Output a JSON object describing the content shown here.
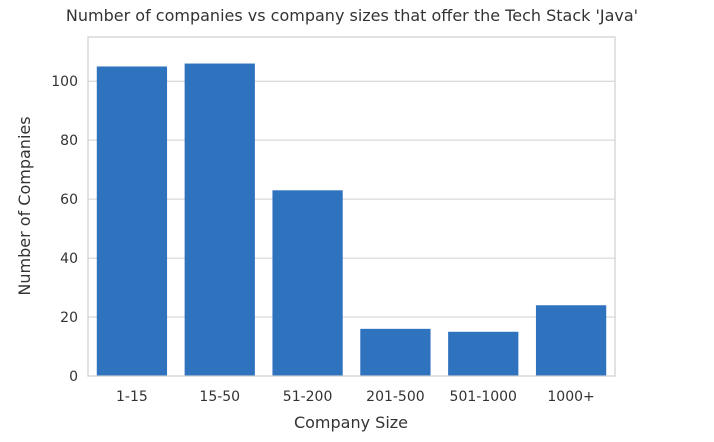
{
  "chart_data": {
    "type": "bar",
    "title": "Number of companies vs company sizes that offer the Tech Stack 'Java'",
    "xlabel": "Company Size",
    "ylabel": "Number of Companies",
    "categories": [
      "1-15",
      "15-50",
      "51-200",
      "201-500",
      "501-1000",
      "1000+"
    ],
    "values": [
      105,
      106,
      63,
      16,
      15,
      24
    ],
    "ylim": [
      0,
      115
    ],
    "yticks": [
      0,
      20,
      40,
      60,
      80,
      100
    ],
    "grid": true,
    "bar_color": "#2f73bf",
    "grid_color": "#d0d0d0",
    "frame_color": "#cfcfcf",
    "text_color": "#333333"
  }
}
